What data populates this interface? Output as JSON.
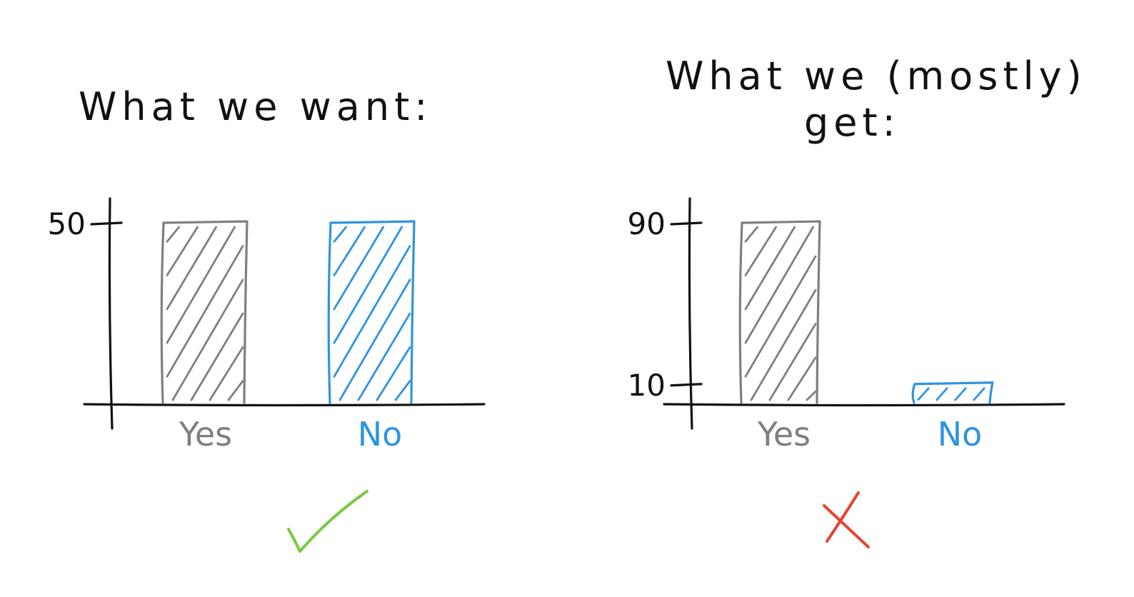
{
  "colors": {
    "ink": "#111111",
    "yes": "#7f7f7f",
    "no": "#2f93e0",
    "check": "#7ac943",
    "cross": "#e8432f"
  },
  "icons": {
    "left_mark": "check-mark-icon",
    "right_mark": "cross-mark-icon"
  },
  "chart_data": [
    {
      "type": "bar",
      "title": "What we want:",
      "categories": [
        "Yes",
        "No"
      ],
      "values": [
        50,
        50
      ],
      "yticks": [
        50
      ],
      "ylim": [
        0,
        50
      ],
      "grid": false,
      "verdict": "check"
    },
    {
      "type": "bar",
      "title": "What we (mostly) get:",
      "title_lines": [
        "What we (mostly)",
        "get:"
      ],
      "categories": [
        "Yes",
        "No"
      ],
      "values": [
        90,
        10
      ],
      "yticks": [
        10,
        90
      ],
      "ylim": [
        0,
        90
      ],
      "grid": false,
      "verdict": "cross"
    }
  ]
}
